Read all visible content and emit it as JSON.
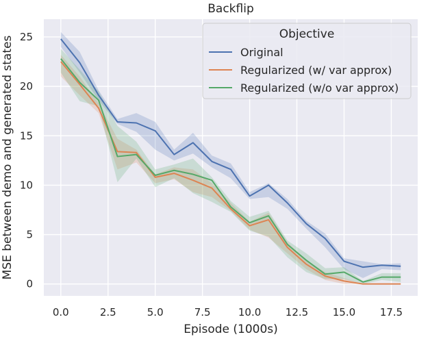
{
  "chart_data": {
    "type": "line",
    "title": "Backflip",
    "xlabel": "Episode (1000s)",
    "ylabel": "MSE between demo and generated states",
    "xlim": [
      -0.9,
      18.9
    ],
    "ylim": [
      -1.2,
      26.8
    ],
    "xticks": [
      0,
      2.5,
      5,
      7.5,
      10,
      12.5,
      15,
      17.5
    ],
    "xtick_labels": [
      "0.0",
      "2.5",
      "5.0",
      "7.5",
      "10.0",
      "12.5",
      "15.0",
      "17.5"
    ],
    "yticks": [
      0,
      5,
      10,
      15,
      20,
      25
    ],
    "ytick_labels": [
      "0",
      "5",
      "10",
      "15",
      "20",
      "25"
    ],
    "grid": true,
    "legend": {
      "title": "Objective",
      "position": "top-right"
    },
    "x": [
      0,
      1,
      2,
      3,
      4,
      5,
      6,
      7,
      8,
      9,
      10,
      11,
      12,
      13,
      14,
      15,
      16,
      17,
      18
    ],
    "series": [
      {
        "name": "Original",
        "color": "#4c72b0",
        "values": [
          24.8,
          22.4,
          19.1,
          16.4,
          16.3,
          15.5,
          13.1,
          14.3,
          12.4,
          11.6,
          8.9,
          10.0,
          8.2,
          6.1,
          4.6,
          2.3,
          1.7,
          1.9,
          1.8
        ],
        "lower": [
          24.0,
          21.4,
          18.6,
          16.2,
          15.4,
          13.6,
          12.5,
          13.2,
          11.8,
          10.7,
          8.6,
          8.8,
          7.6,
          5.6,
          3.7,
          1.5,
          0.6,
          1.5,
          1.4
        ],
        "upper": [
          25.5,
          23.5,
          19.6,
          16.7,
          17.3,
          16.4,
          13.6,
          15.3,
          13.0,
          12.2,
          9.3,
          10.2,
          8.6,
          6.4,
          5.1,
          2.6,
          2.3,
          2.0,
          2.1
        ]
      },
      {
        "name": "Regularized (w/ var approx)",
        "color": "#dd8452",
        "values": [
          22.5,
          20.2,
          17.8,
          13.4,
          13.3,
          10.8,
          11.2,
          10.5,
          9.7,
          7.6,
          5.9,
          6.5,
          3.7,
          2.0,
          0.8,
          0.3,
          0.0,
          0.0,
          0.0
        ],
        "lower": [
          21.0,
          19.1,
          17.3,
          11.6,
          12.3,
          10.2,
          10.6,
          9.3,
          8.8,
          7.4,
          5.5,
          4.7,
          3.1,
          1.5,
          0.4,
          0.0,
          0.0,
          0.0,
          0.0
        ],
        "upper": [
          23.2,
          21.0,
          18.3,
          14.7,
          13.6,
          11.1,
          11.8,
          11.6,
          10.2,
          8.2,
          6.3,
          7.2,
          4.2,
          2.4,
          1.2,
          0.6,
          0.0,
          0.0,
          0.0
        ]
      },
      {
        "name": "Regularized (w/o var approx)",
        "color": "#55a868",
        "values": [
          22.8,
          20.4,
          18.6,
          12.9,
          13.1,
          11.0,
          11.5,
          11.1,
          10.5,
          7.8,
          6.2,
          6.9,
          4.0,
          2.4,
          1.0,
          1.2,
          0.2,
          0.7,
          0.7
        ],
        "lower": [
          21.4,
          18.5,
          18.0,
          10.3,
          12.7,
          9.8,
          10.7,
          9.2,
          8.3,
          7.3,
          5.4,
          4.8,
          2.7,
          1.2,
          0.5,
          0.5,
          0.0,
          0.4,
          0.2
        ],
        "upper": [
          23.8,
          21.7,
          19.5,
          16.0,
          14.4,
          11.6,
          12.1,
          12.7,
          10.8,
          8.4,
          6.8,
          7.4,
          4.4,
          3.1,
          1.6,
          1.7,
          0.3,
          1.1,
          1.1
        ]
      }
    ]
  }
}
